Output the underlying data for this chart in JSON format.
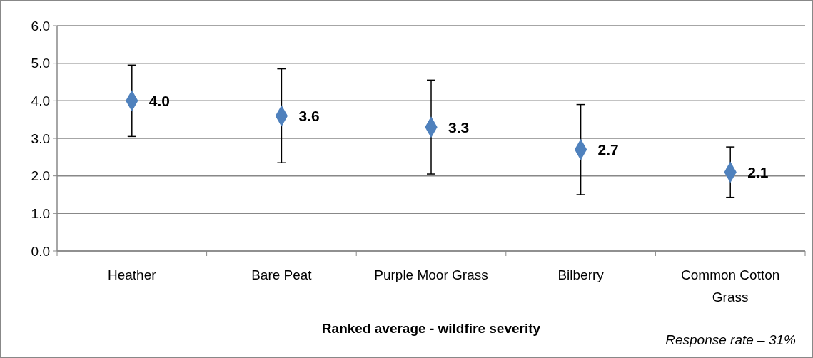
{
  "chart_data": {
    "type": "scatter",
    "xlabel": "Ranked average - wildfire severity",
    "annotations": [
      "Response rate – 31%"
    ],
    "categories": [
      "Heather",
      "Bare Peat",
      "Purple Moor Grass",
      "Bilberry",
      "Common Cotton Grass"
    ],
    "values": [
      4.0,
      3.6,
      3.3,
      2.7,
      2.1
    ],
    "errors": [
      [
        3.05,
        4.95
      ],
      [
        2.35,
        4.85
      ],
      [
        2.05,
        4.55
      ],
      [
        1.5,
        3.9
      ],
      [
        1.43,
        2.77
      ]
    ],
    "value_labels": [
      "4.0",
      "3.6",
      "3.3",
      "2.7",
      "2.1"
    ],
    "color": "#4f81bd",
    "marker": "diamond",
    "grid": "y",
    "ylim": [
      0,
      6
    ],
    "yticks": [
      {
        "value": 0,
        "label": "0.0"
      },
      {
        "value": 1,
        "label": "1.0"
      },
      {
        "value": 2,
        "label": "2.0"
      },
      {
        "value": 3,
        "label": "3.0"
      },
      {
        "value": 4,
        "label": "4.0"
      },
      {
        "value": 5,
        "label": "5.0"
      },
      {
        "value": 6,
        "label": "6.0"
      }
    ]
  }
}
